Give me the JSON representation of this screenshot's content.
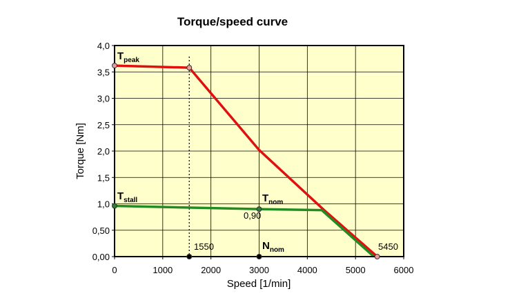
{
  "chart_data": {
    "type": "line",
    "title": "Torque/speed curve",
    "xlabel": "Speed [1/min]",
    "ylabel": "Torque [Nm]",
    "xlim": [
      0,
      6000
    ],
    "ylim": [
      0,
      4.0
    ],
    "x_ticks": [
      "0",
      "1000",
      "2000",
      "3000",
      "4000",
      "5000",
      "6000"
    ],
    "y_ticks": [
      "0,00",
      "0,50",
      "1,0",
      "1,5",
      "2,0",
      "2,5",
      "3,0",
      "3,5",
      "4,0"
    ],
    "grid": true,
    "background_color": "#ffffcc",
    "series": [
      {
        "color": "#e01010",
        "x": [
          0,
          1550,
          3000,
          4350,
          5450
        ],
        "y": [
          3.62,
          3.58,
          2.02,
          0.88,
          0
        ]
      },
      {
        "color": "#228b22",
        "x": [
          0,
          3000,
          4300,
          5380
        ],
        "y": [
          0.96,
          0.9,
          0.88,
          0
        ]
      }
    ],
    "markers": [
      {
        "x": 0,
        "y": 3.62,
        "color": "#e89a9a"
      },
      {
        "x": 1550,
        "y": 3.58,
        "color": "#e89a9a"
      },
      {
        "x": 5450,
        "y": 0,
        "color": "#e89a9a"
      },
      {
        "x": 0,
        "y": 0.96,
        "color": "#2e7d32"
      },
      {
        "x": 3000,
        "y": 0.9,
        "color": "#2e7d32"
      },
      {
        "x": 1550,
        "y": 0,
        "color": "#000000"
      },
      {
        "x": 3000,
        "y": 0,
        "color": "#000000"
      }
    ],
    "vline_dotted_x": 1550,
    "annotations": {
      "t_peak": {
        "main": "T",
        "sub": "peak"
      },
      "t_stall": {
        "main": "T",
        "sub": "stall"
      },
      "t_nom": {
        "main": "T",
        "sub": "nom"
      },
      "n_nom": {
        "main": "N",
        "sub": "nom"
      },
      "t_nom_value": "0,90",
      "n_corner_value": "1550",
      "n_max_value": "5450"
    }
  }
}
